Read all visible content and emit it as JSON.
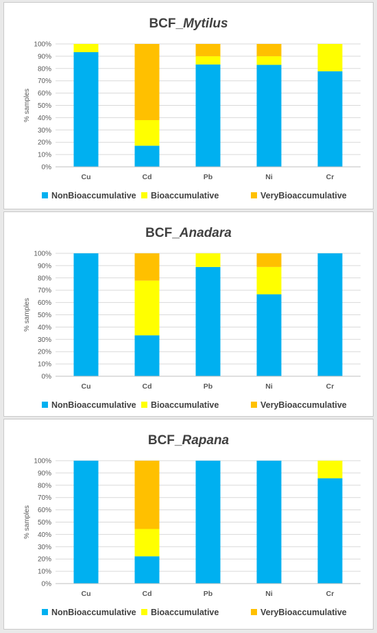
{
  "colors": {
    "NonBioaccumulative": "#00b0f0",
    "Bioaccumulative": "#ffff00",
    "VeryBioaccumulative": "#ffc000",
    "grid": "#d9d9d9",
    "axis": "#bfbfbf"
  },
  "chart_data": [
    {
      "type": "bar",
      "stacked": true,
      "title": "BCF_",
      "title_italic": "Mytilus",
      "ylabel": "% samples",
      "ylim": [
        0,
        100
      ],
      "yticks": [
        "0%",
        "10%",
        "20%",
        "30%",
        "40%",
        "50%",
        "60%",
        "70%",
        "80%",
        "90%",
        "100%"
      ],
      "categories": [
        "Cu",
        "Cd",
        "Pb",
        "Ni",
        "Cr"
      ],
      "legend": "bottom",
      "series": [
        {
          "name": "NonBioaccumulative",
          "values": [
            93.3,
            17.2,
            83.3,
            83.0,
            77.8
          ]
        },
        {
          "name": "Bioaccumulative",
          "values": [
            6.7,
            20.8,
            6.7,
            7.0,
            22.2
          ]
        },
        {
          "name": "VeryBioaccumulative",
          "values": [
            0,
            62.0,
            10.0,
            10.0,
            0
          ]
        }
      ]
    },
    {
      "type": "bar",
      "stacked": true,
      "title": "BCF_",
      "title_italic": "Anadara",
      "ylabel": "% samples",
      "ylim": [
        0,
        100
      ],
      "yticks": [
        "0%",
        "10%",
        "20%",
        "30%",
        "40%",
        "50%",
        "60%",
        "70%",
        "80%",
        "90%",
        "100%"
      ],
      "categories": [
        "Cu",
        "Cd",
        "Pb",
        "Ni",
        "Cr"
      ],
      "legend": "bottom",
      "series": [
        {
          "name": "NonBioaccumulative",
          "values": [
            100,
            33.3,
            88.9,
            66.7,
            100
          ]
        },
        {
          "name": "Bioaccumulative",
          "values": [
            0,
            44.5,
            11.1,
            22.2,
            0
          ]
        },
        {
          "name": "VeryBioaccumulative",
          "values": [
            0,
            22.2,
            0,
            11.1,
            0
          ]
        }
      ]
    },
    {
      "type": "bar",
      "stacked": true,
      "title": "BCF_",
      "title_italic": "Rapana",
      "ylabel": "% samples",
      "ylim": [
        0,
        100
      ],
      "yticks": [
        "0%",
        "10%",
        "20%",
        "30%",
        "40%",
        "50%",
        "60%",
        "70%",
        "80%",
        "90%",
        "100%"
      ],
      "categories": [
        "Cu",
        "Cd",
        "Pb",
        "Ni",
        "Cr"
      ],
      "legend": "bottom",
      "series": [
        {
          "name": "NonBioaccumulative",
          "values": [
            100,
            22.2,
            100,
            100,
            85.7
          ]
        },
        {
          "name": "Bioaccumulative",
          "values": [
            0,
            22.2,
            0,
            0,
            14.3
          ]
        },
        {
          "name": "VeryBioaccumulative",
          "values": [
            0,
            55.6,
            0,
            0,
            0
          ]
        }
      ]
    }
  ]
}
